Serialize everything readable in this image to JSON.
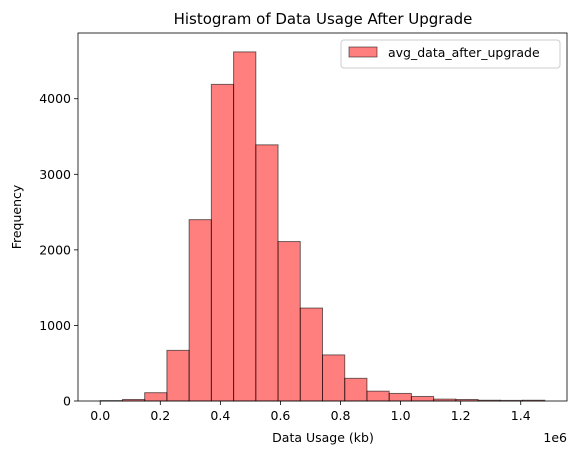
{
  "chart_data": {
    "type": "bar",
    "title": "Histogram of Data Usage After Upgrade",
    "xlabel": "Data Usage (kb)",
    "ylabel": "Frequency",
    "x_offset_label": "1e6",
    "legend": {
      "label": "avg_data_after_upgrade",
      "placement": "top-right"
    },
    "bar_color": "#ff0000",
    "bar_opacity": 0.5,
    "edge_color": "#000000",
    "xlim": [
      -0.074,
      1.554
    ],
    "ylim": [
      0,
      4870
    ],
    "x_ticks": [
      0.0,
      0.2,
      0.4,
      0.6,
      0.8,
      1.0,
      1.2,
      1.4
    ],
    "x_tick_labels": [
      "0.0",
      "0.2",
      "0.4",
      "0.6",
      "0.8",
      "1.0",
      "1.2",
      "1.4"
    ],
    "y_ticks": [
      0,
      1000,
      2000,
      3000,
      4000
    ],
    "y_tick_labels": [
      "0",
      "1000",
      "2000",
      "3000",
      "4000"
    ],
    "bin_edges": [
      0.0,
      0.074,
      0.148,
      0.222,
      0.296,
      0.37,
      0.444,
      0.518,
      0.592,
      0.666,
      0.74,
      0.814,
      0.888,
      0.962,
      1.036,
      1.11,
      1.184,
      1.258,
      1.332,
      1.406,
      1.48
    ],
    "values": [
      5,
      20,
      110,
      670,
      2400,
      4190,
      4620,
      3390,
      2110,
      1230,
      610,
      300,
      130,
      100,
      60,
      25,
      20,
      10,
      8,
      10
    ]
  }
}
